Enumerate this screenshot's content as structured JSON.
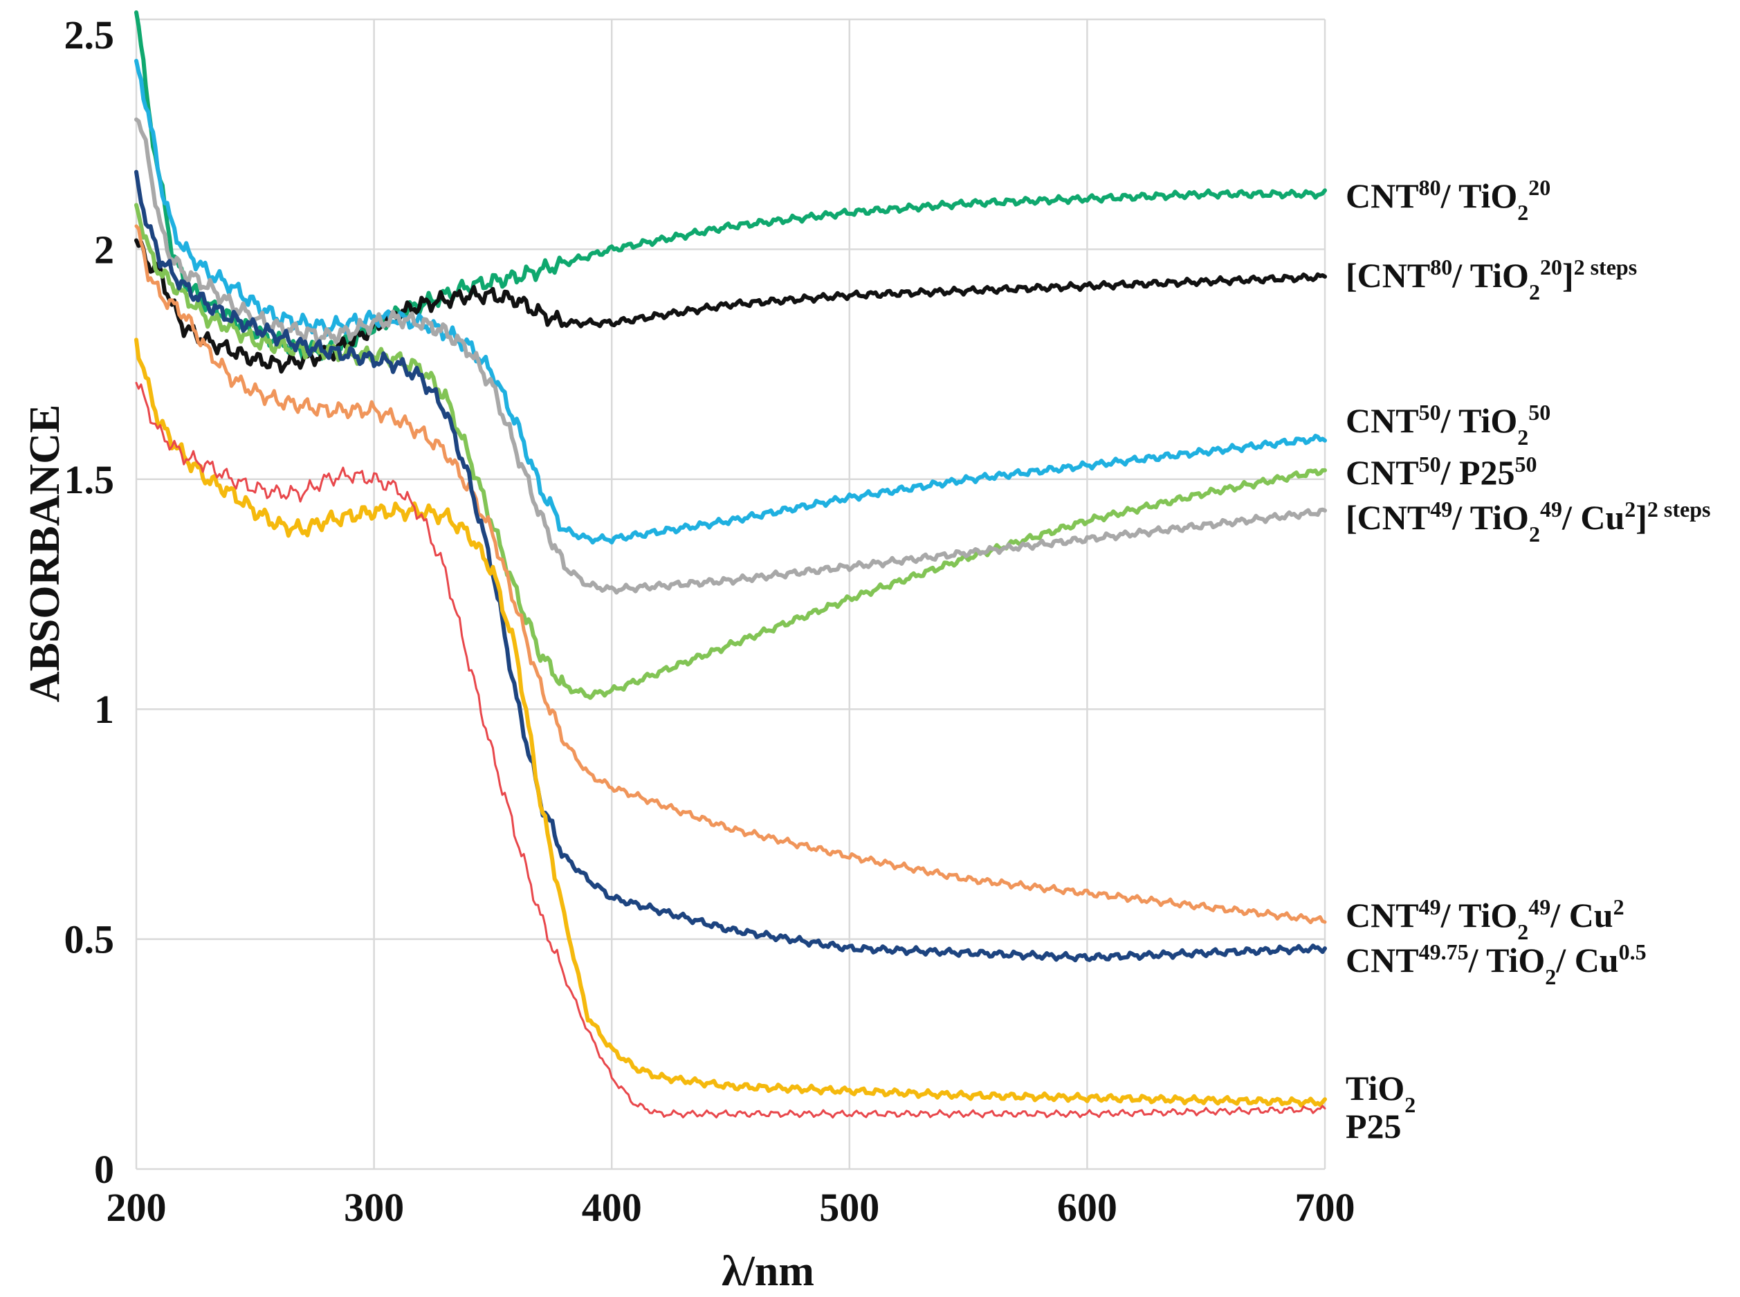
{
  "chart_data": {
    "type": "line",
    "xlabel": "λ/nm",
    "ylabel": "ABSORBANCE",
    "xlim": [
      200,
      700
    ],
    "ylim": [
      0,
      2.5
    ],
    "x_ticks": [
      "200",
      "300",
      "400",
      "500",
      "600",
      "700"
    ],
    "y_ticks": [
      "0",
      "0.5",
      "1",
      "1.5",
      "2",
      "2.5"
    ],
    "grid": true,
    "legend_placement": "right",
    "series": [
      {
        "name": "CNT80/ TiO2 20",
        "label_parts": [
          [
            "CNT",
            ""
          ],
          [
            "80",
            "sup"
          ],
          [
            "/ TiO",
            ""
          ],
          [
            "2",
            "sub"
          ],
          [
            "20",
            "sup"
          ]
        ],
        "color": "#0fa86e",
        "width": 6,
        "points": [
          [
            200,
            2.55
          ],
          [
            205,
            2.3
          ],
          [
            210,
            2.15
          ],
          [
            215,
            2.0
          ],
          [
            220,
            1.93
          ],
          [
            230,
            1.88
          ],
          [
            240,
            1.85
          ],
          [
            250,
            1.82
          ],
          [
            260,
            1.8
          ],
          [
            270,
            1.78
          ],
          [
            280,
            1.78
          ],
          [
            290,
            1.8
          ],
          [
            300,
            1.83
          ],
          [
            310,
            1.86
          ],
          [
            320,
            1.88
          ],
          [
            330,
            1.9
          ],
          [
            340,
            1.92
          ],
          [
            350,
            1.93
          ],
          [
            360,
            1.94
          ],
          [
            380,
            1.97
          ],
          [
            400,
            2.0
          ],
          [
            450,
            2.05
          ],
          [
            500,
            2.08
          ],
          [
            550,
            2.1
          ],
          [
            600,
            2.11
          ],
          [
            650,
            2.12
          ],
          [
            700,
            2.12
          ]
        ]
      },
      {
        "name": "[CNT80/ TiO2 20]2 steps",
        "label_parts": [
          [
            "[CNT",
            ""
          ],
          [
            "80",
            "sup"
          ],
          [
            "/ TiO",
            ""
          ],
          [
            "2",
            "sub"
          ],
          [
            "20",
            "sup"
          ],
          [
            "]",
            ""
          ],
          [
            "2 steps",
            "sup"
          ]
        ],
        "color": "#111111",
        "width": 6,
        "points": [
          [
            200,
            2.02
          ],
          [
            205,
            1.97
          ],
          [
            210,
            1.95
          ],
          [
            215,
            1.88
          ],
          [
            220,
            1.83
          ],
          [
            230,
            1.8
          ],
          [
            240,
            1.78
          ],
          [
            250,
            1.76
          ],
          [
            260,
            1.75
          ],
          [
            270,
            1.76
          ],
          [
            280,
            1.77
          ],
          [
            290,
            1.8
          ],
          [
            300,
            1.83
          ],
          [
            310,
            1.86
          ],
          [
            320,
            1.88
          ],
          [
            330,
            1.89
          ],
          [
            340,
            1.9
          ],
          [
            350,
            1.9
          ],
          [
            360,
            1.89
          ],
          [
            370,
            1.86
          ],
          [
            380,
            1.84
          ],
          [
            390,
            1.84
          ],
          [
            400,
            1.84
          ],
          [
            450,
            1.88
          ],
          [
            500,
            1.9
          ],
          [
            550,
            1.91
          ],
          [
            600,
            1.92
          ],
          [
            650,
            1.93
          ],
          [
            700,
            1.94
          ]
        ]
      },
      {
        "name": "CNT50/ TiO2 50",
        "label_parts": [
          [
            "CNT",
            ""
          ],
          [
            "50",
            "sup"
          ],
          [
            "/ TiO",
            ""
          ],
          [
            "2",
            "sub"
          ],
          [
            "50",
            "sup"
          ]
        ],
        "color": "#1fb0e0",
        "width": 6,
        "points": [
          [
            200,
            2.4
          ],
          [
            205,
            2.3
          ],
          [
            210,
            2.15
          ],
          [
            215,
            2.05
          ],
          [
            220,
            2.0
          ],
          [
            230,
            1.95
          ],
          [
            240,
            1.92
          ],
          [
            250,
            1.88
          ],
          [
            260,
            1.85
          ],
          [
            270,
            1.84
          ],
          [
            280,
            1.83
          ],
          [
            290,
            1.84
          ],
          [
            300,
            1.85
          ],
          [
            310,
            1.85
          ],
          [
            320,
            1.84
          ],
          [
            330,
            1.82
          ],
          [
            340,
            1.79
          ],
          [
            350,
            1.73
          ],
          [
            360,
            1.62
          ],
          [
            370,
            1.48
          ],
          [
            380,
            1.39
          ],
          [
            390,
            1.37
          ],
          [
            400,
            1.37
          ],
          [
            450,
            1.41
          ],
          [
            500,
            1.46
          ],
          [
            550,
            1.5
          ],
          [
            600,
            1.53
          ],
          [
            650,
            1.56
          ],
          [
            700,
            1.59
          ]
        ]
      },
      {
        "name": "CNT50/ P25 50",
        "label_parts": [
          [
            "CNT",
            ""
          ],
          [
            "50",
            "sup"
          ],
          [
            "/ P25",
            ""
          ],
          [
            "50",
            "sup"
          ]
        ],
        "color": "#82c455",
        "width": 6,
        "points": [
          [
            200,
            2.1
          ],
          [
            205,
            2.0
          ],
          [
            210,
            1.95
          ],
          [
            220,
            1.9
          ],
          [
            230,
            1.85
          ],
          [
            240,
            1.83
          ],
          [
            250,
            1.8
          ],
          [
            260,
            1.79
          ],
          [
            270,
            1.78
          ],
          [
            280,
            1.78
          ],
          [
            290,
            1.77
          ],
          [
            300,
            1.77
          ],
          [
            310,
            1.76
          ],
          [
            320,
            1.74
          ],
          [
            330,
            1.68
          ],
          [
            340,
            1.55
          ],
          [
            350,
            1.4
          ],
          [
            360,
            1.25
          ],
          [
            370,
            1.12
          ],
          [
            380,
            1.05
          ],
          [
            390,
            1.03
          ],
          [
            400,
            1.04
          ],
          [
            450,
            1.14
          ],
          [
            500,
            1.24
          ],
          [
            550,
            1.33
          ],
          [
            600,
            1.41
          ],
          [
            650,
            1.47
          ],
          [
            700,
            1.52
          ]
        ]
      },
      {
        "name": "[CNT49/ TiO2 49/ Cu2]2 steps",
        "label_parts": [
          [
            "[CNT",
            ""
          ],
          [
            "49",
            "sup"
          ],
          [
            "/ TiO",
            ""
          ],
          [
            "2",
            "sub"
          ],
          [
            "49",
            "sup"
          ],
          [
            "/ Cu",
            ""
          ],
          [
            "2",
            "sup"
          ],
          [
            "]",
            ""
          ],
          [
            "2 steps",
            "sup"
          ]
        ],
        "color": "#a8a8a8",
        "width": 6,
        "points": [
          [
            200,
            2.3
          ],
          [
            205,
            2.2
          ],
          [
            210,
            2.05
          ],
          [
            215,
            1.98
          ],
          [
            220,
            1.95
          ],
          [
            230,
            1.92
          ],
          [
            240,
            1.88
          ],
          [
            250,
            1.85
          ],
          [
            260,
            1.83
          ],
          [
            270,
            1.82
          ],
          [
            280,
            1.81
          ],
          [
            290,
            1.82
          ],
          [
            300,
            1.84
          ],
          [
            310,
            1.85
          ],
          [
            320,
            1.84
          ],
          [
            330,
            1.82
          ],
          [
            340,
            1.78
          ],
          [
            350,
            1.7
          ],
          [
            360,
            1.56
          ],
          [
            370,
            1.42
          ],
          [
            380,
            1.31
          ],
          [
            390,
            1.27
          ],
          [
            400,
            1.26
          ],
          [
            450,
            1.28
          ],
          [
            500,
            1.31
          ],
          [
            550,
            1.34
          ],
          [
            600,
            1.37
          ],
          [
            650,
            1.4
          ],
          [
            700,
            1.43
          ]
        ]
      },
      {
        "name": "CNT49/ TiO2 49/ Cu2",
        "label_parts": [
          [
            "CNT",
            ""
          ],
          [
            "49",
            "sup"
          ],
          [
            "/ TiO",
            ""
          ],
          [
            "2",
            "sub"
          ],
          [
            "49",
            "sup"
          ],
          [
            "/ Cu",
            ""
          ],
          [
            "2",
            "sup"
          ]
        ],
        "color": "#f0955a",
        "width": 5,
        "points": [
          [
            200,
            2.05
          ],
          [
            205,
            1.95
          ],
          [
            210,
            1.9
          ],
          [
            220,
            1.86
          ],
          [
            230,
            1.78
          ],
          [
            240,
            1.72
          ],
          [
            250,
            1.69
          ],
          [
            260,
            1.67
          ],
          [
            270,
            1.66
          ],
          [
            280,
            1.65
          ],
          [
            290,
            1.65
          ],
          [
            300,
            1.65
          ],
          [
            310,
            1.63
          ],
          [
            320,
            1.6
          ],
          [
            330,
            1.56
          ],
          [
            340,
            1.48
          ],
          [
            350,
            1.38
          ],
          [
            360,
            1.22
          ],
          [
            370,
            1.05
          ],
          [
            380,
            0.93
          ],
          [
            390,
            0.86
          ],
          [
            400,
            0.83
          ],
          [
            450,
            0.74
          ],
          [
            500,
            0.68
          ],
          [
            550,
            0.63
          ],
          [
            600,
            0.6
          ],
          [
            650,
            0.57
          ],
          [
            700,
            0.54
          ]
        ]
      },
      {
        "name": "CNT49.75/ TiO2/ Cu0.5",
        "label_parts": [
          [
            "CNT",
            ""
          ],
          [
            "49.75",
            "sup"
          ],
          [
            "/ TiO",
            ""
          ],
          [
            "2",
            "sub"
          ],
          [
            "/ Cu",
            ""
          ],
          [
            "0.5",
            "sup"
          ]
        ],
        "color": "#1d4480",
        "width": 6,
        "points": [
          [
            200,
            2.15
          ],
          [
            205,
            2.05
          ],
          [
            210,
            1.98
          ],
          [
            220,
            1.92
          ],
          [
            230,
            1.88
          ],
          [
            240,
            1.85
          ],
          [
            250,
            1.83
          ],
          [
            260,
            1.81
          ],
          [
            270,
            1.79
          ],
          [
            280,
            1.78
          ],
          [
            290,
            1.77
          ],
          [
            300,
            1.76
          ],
          [
            310,
            1.75
          ],
          [
            320,
            1.72
          ],
          [
            330,
            1.65
          ],
          [
            340,
            1.5
          ],
          [
            350,
            1.3
          ],
          [
            360,
            1.02
          ],
          [
            370,
            0.8
          ],
          [
            380,
            0.68
          ],
          [
            390,
            0.63
          ],
          [
            400,
            0.59
          ],
          [
            450,
            0.52
          ],
          [
            500,
            0.48
          ],
          [
            550,
            0.47
          ],
          [
            600,
            0.46
          ],
          [
            650,
            0.47
          ],
          [
            700,
            0.48
          ]
        ]
      },
      {
        "name": "TiO2",
        "label_parts": [
          [
            "TiO",
            ""
          ],
          [
            "2",
            "sub"
          ]
        ],
        "color": "#f5b90d",
        "width": 6,
        "points": [
          [
            200,
            1.8
          ],
          [
            205,
            1.7
          ],
          [
            210,
            1.62
          ],
          [
            220,
            1.55
          ],
          [
            230,
            1.5
          ],
          [
            240,
            1.47
          ],
          [
            250,
            1.43
          ],
          [
            260,
            1.4
          ],
          [
            270,
            1.39
          ],
          [
            280,
            1.41
          ],
          [
            290,
            1.42
          ],
          [
            300,
            1.43
          ],
          [
            310,
            1.43
          ],
          [
            320,
            1.43
          ],
          [
            330,
            1.42
          ],
          [
            340,
            1.38
          ],
          [
            350,
            1.3
          ],
          [
            360,
            1.12
          ],
          [
            370,
            0.8
          ],
          [
            380,
            0.55
          ],
          [
            390,
            0.33
          ],
          [
            400,
            0.26
          ],
          [
            410,
            0.22
          ],
          [
            420,
            0.2
          ],
          [
            450,
            0.18
          ],
          [
            500,
            0.17
          ],
          [
            550,
            0.16
          ],
          [
            600,
            0.155
          ],
          [
            650,
            0.15
          ],
          [
            700,
            0.145
          ]
        ]
      },
      {
        "name": "P25",
        "label_parts": [
          [
            "P25",
            ""
          ]
        ],
        "color": "#e8474b",
        "width": 3,
        "points": [
          [
            200,
            1.72
          ],
          [
            205,
            1.65
          ],
          [
            210,
            1.6
          ],
          [
            220,
            1.55
          ],
          [
            230,
            1.53
          ],
          [
            240,
            1.5
          ],
          [
            250,
            1.48
          ],
          [
            260,
            1.47
          ],
          [
            270,
            1.47
          ],
          [
            280,
            1.5
          ],
          [
            290,
            1.51
          ],
          [
            300,
            1.5
          ],
          [
            310,
            1.48
          ],
          [
            320,
            1.42
          ],
          [
            330,
            1.3
          ],
          [
            340,
            1.1
          ],
          [
            350,
            0.9
          ],
          [
            360,
            0.72
          ],
          [
            370,
            0.55
          ],
          [
            380,
            0.42
          ],
          [
            390,
            0.3
          ],
          [
            400,
            0.2
          ],
          [
            410,
            0.14
          ],
          [
            420,
            0.12
          ],
          [
            450,
            0.12
          ],
          [
            500,
            0.12
          ],
          [
            550,
            0.12
          ],
          [
            600,
            0.12
          ],
          [
            650,
            0.125
          ],
          [
            700,
            0.13
          ]
        ]
      }
    ]
  }
}
